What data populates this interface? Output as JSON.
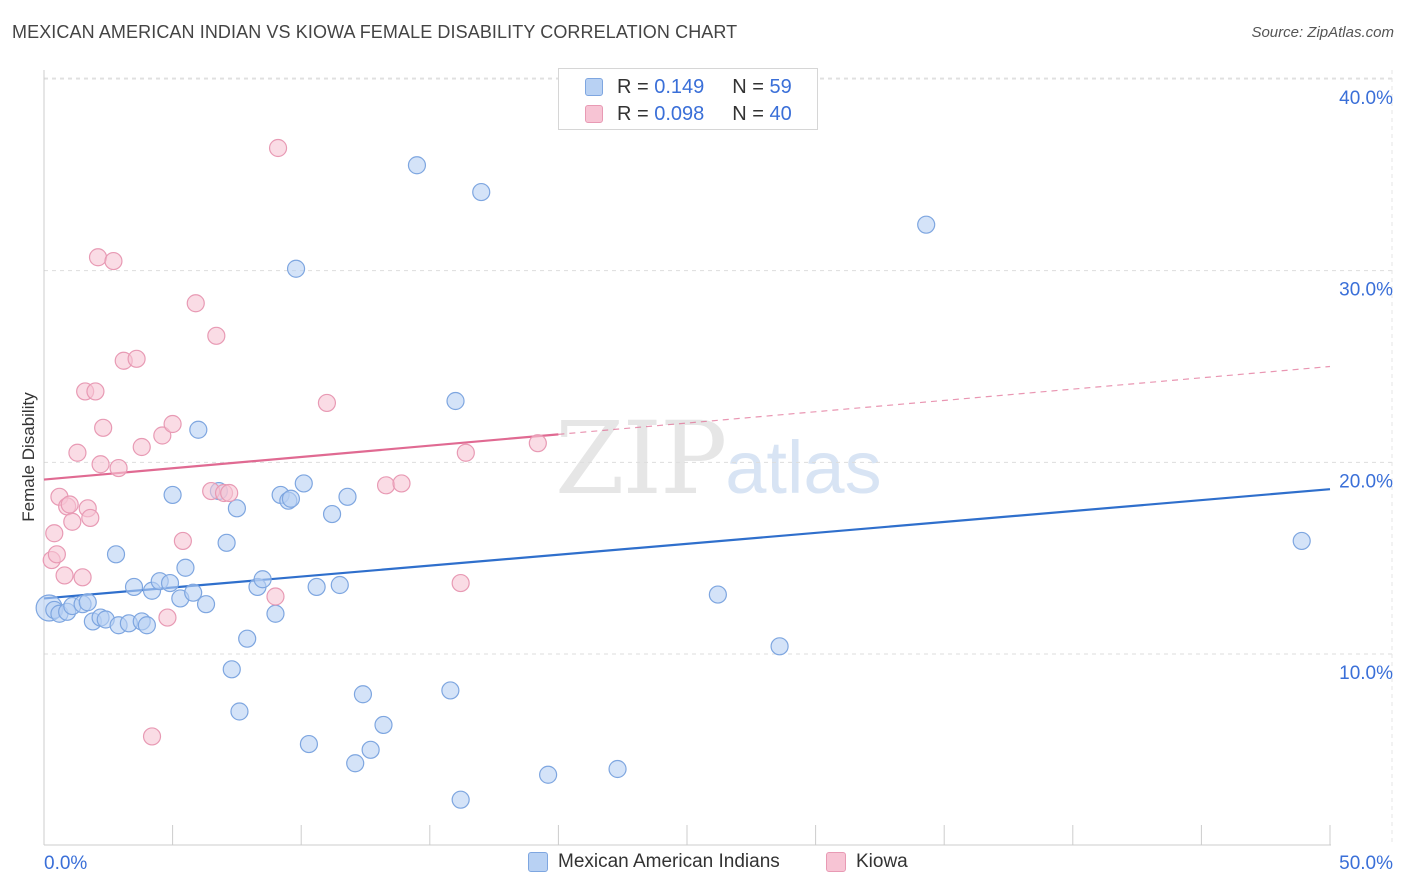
{
  "title": "MEXICAN AMERICAN INDIAN VS KIOWA FEMALE DISABILITY CORRELATION CHART",
  "source": "Source: ZipAtlas.com",
  "watermark": {
    "zip": "ZIP",
    "atlas": "atlas"
  },
  "legend_top": {
    "rows": [
      {
        "r_label": "R =",
        "r_value": "0.149",
        "n_label": "N =",
        "n_value": "59"
      },
      {
        "r_label": "R =",
        "r_value": "0.098",
        "n_label": "N =",
        "n_value": "40"
      }
    ]
  },
  "colors": {
    "blue_fill": "#b8d1f3",
    "blue_stroke": "#7ea6e0",
    "blue_line": "#2f6fcc",
    "pink_fill": "#f7c4d4",
    "pink_stroke": "#e89ab4",
    "pink_line": "#e06a92",
    "axis_text": "#3a6fd8",
    "grid": "#dddddd"
  },
  "chart_data": {
    "type": "scatter",
    "title": "MEXICAN AMERICAN INDIAN VS KIOWA FEMALE DISABILITY CORRELATION CHART",
    "xlabel": "",
    "ylabel": "Female Disability",
    "xlim": [
      0,
      50
    ],
    "ylim": [
      0,
      42
    ],
    "x_tick_labels": [
      "0.0%",
      "50.0%"
    ],
    "y_ticks": [
      10,
      20,
      30,
      40
    ],
    "y_tick_labels": [
      "10.0%",
      "20.0%",
      "30.0%",
      "40.0%"
    ],
    "legend_position": "bottom",
    "series": [
      {
        "name": "Mexican American Indians",
        "color": "#7ea6e0",
        "trend": {
          "x": [
            0,
            50
          ],
          "y": [
            12.9,
            18.6
          ],
          "solid_until": 50
        },
        "points": [
          [
            0.2,
            12.4
          ],
          [
            0.4,
            12.3
          ],
          [
            0.6,
            12.1
          ],
          [
            0.9,
            12.2
          ],
          [
            1.1,
            12.5
          ],
          [
            1.5,
            12.6
          ],
          [
            1.7,
            12.7
          ],
          [
            1.9,
            11.7
          ],
          [
            2.2,
            11.9
          ],
          [
            2.4,
            11.8
          ],
          [
            2.8,
            15.2
          ],
          [
            2.9,
            11.5
          ],
          [
            3.3,
            11.6
          ],
          [
            3.5,
            13.5
          ],
          [
            3.8,
            11.7
          ],
          [
            4.0,
            11.5
          ],
          [
            4.2,
            13.3
          ],
          [
            4.5,
            13.8
          ],
          [
            4.9,
            13.7
          ],
          [
            5.0,
            18.3
          ],
          [
            5.3,
            12.9
          ],
          [
            5.5,
            14.5
          ],
          [
            5.8,
            13.2
          ],
          [
            6.0,
            21.7
          ],
          [
            6.3,
            12.6
          ],
          [
            6.8,
            18.5
          ],
          [
            7.1,
            15.8
          ],
          [
            7.3,
            9.2
          ],
          [
            7.5,
            17.6
          ],
          [
            7.6,
            7.0
          ],
          [
            7.9,
            10.8
          ],
          [
            8.3,
            13.5
          ],
          [
            8.5,
            13.9
          ],
          [
            9.0,
            12.1
          ],
          [
            9.2,
            18.3
          ],
          [
            9.5,
            18.0
          ],
          [
            9.6,
            18.1
          ],
          [
            9.8,
            30.1
          ],
          [
            10.1,
            18.9
          ],
          [
            10.3,
            5.3
          ],
          [
            10.6,
            13.5
          ],
          [
            11.2,
            17.3
          ],
          [
            11.5,
            13.6
          ],
          [
            11.8,
            18.2
          ],
          [
            12.1,
            4.3
          ],
          [
            12.4,
            7.9
          ],
          [
            12.7,
            5.0
          ],
          [
            13.2,
            6.3
          ],
          [
            14.5,
            35.5
          ],
          [
            15.8,
            8.1
          ],
          [
            16.0,
            23.2
          ],
          [
            16.2,
            2.4
          ],
          [
            17.0,
            34.1
          ],
          [
            19.6,
            3.7
          ],
          [
            22.3,
            4.0
          ],
          [
            26.2,
            13.1
          ],
          [
            28.6,
            10.4
          ],
          [
            34.3,
            32.4
          ],
          [
            48.9,
            15.9
          ]
        ]
      },
      {
        "name": "Kiowa",
        "color": "#e89ab4",
        "trend": {
          "x": [
            0,
            50
          ],
          "y": [
            19.1,
            25.0
          ],
          "solid_until": 20
        },
        "points": [
          [
            0.3,
            14.9
          ],
          [
            0.4,
            16.3
          ],
          [
            0.5,
            15.2
          ],
          [
            0.6,
            18.2
          ],
          [
            0.8,
            14.1
          ],
          [
            0.9,
            17.7
          ],
          [
            1.0,
            17.8
          ],
          [
            1.1,
            16.9
          ],
          [
            1.3,
            20.5
          ],
          [
            1.5,
            14.0
          ],
          [
            1.6,
            23.7
          ],
          [
            1.7,
            17.6
          ],
          [
            1.8,
            17.1
          ],
          [
            2.0,
            23.7
          ],
          [
            2.1,
            30.7
          ],
          [
            2.2,
            19.9
          ],
          [
            2.3,
            21.8
          ],
          [
            2.7,
            30.5
          ],
          [
            2.9,
            19.7
          ],
          [
            3.1,
            25.3
          ],
          [
            3.6,
            25.4
          ],
          [
            3.8,
            20.8
          ],
          [
            4.2,
            5.7
          ],
          [
            4.6,
            21.4
          ],
          [
            4.8,
            11.9
          ],
          [
            5.0,
            22.0
          ],
          [
            5.4,
            15.9
          ],
          [
            5.9,
            28.3
          ],
          [
            6.5,
            18.5
          ],
          [
            6.7,
            26.6
          ],
          [
            7.0,
            18.4
          ],
          [
            7.2,
            18.4
          ],
          [
            9.0,
            13.0
          ],
          [
            9.1,
            36.4
          ],
          [
            11.0,
            23.1
          ],
          [
            13.3,
            18.8
          ],
          [
            13.9,
            18.9
          ],
          [
            16.2,
            13.7
          ],
          [
            16.4,
            20.5
          ],
          [
            19.2,
            21.0
          ]
        ]
      }
    ]
  },
  "bottom_legend": [
    "Mexican American Indians",
    "Kiowa"
  ]
}
